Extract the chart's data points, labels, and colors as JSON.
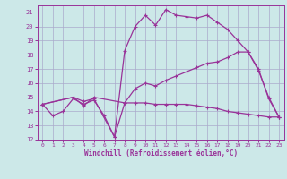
{
  "xlabel": "Windchill (Refroidissement éolien,°C)",
  "bg_color": "#cce8e8",
  "grid_color": "#aaaacc",
  "line_color": "#993399",
  "xlim": [
    -0.5,
    23.5
  ],
  "ylim": [
    12,
    21.5
  ],
  "xticks": [
    0,
    1,
    2,
    3,
    4,
    5,
    6,
    7,
    8,
    9,
    10,
    11,
    12,
    13,
    14,
    15,
    16,
    17,
    18,
    19,
    20,
    21,
    22,
    23
  ],
  "yticks": [
    12,
    13,
    14,
    15,
    16,
    17,
    18,
    19,
    20,
    21
  ],
  "line1_x": [
    0,
    1,
    2,
    3,
    4,
    5,
    6,
    7,
    8,
    9,
    10,
    11,
    12,
    13,
    14,
    15,
    16,
    17,
    18,
    19,
    20,
    21,
    22,
    23
  ],
  "line1_y": [
    14.5,
    13.7,
    14.0,
    14.9,
    14.5,
    14.8,
    13.7,
    12.2,
    14.6,
    14.6,
    14.6,
    14.5,
    14.5,
    14.5,
    14.5,
    14.4,
    14.3,
    14.2,
    14.0,
    13.9,
    13.8,
    13.7,
    13.6,
    13.6
  ],
  "line2_x": [
    0,
    3,
    4,
    5,
    7,
    8,
    9,
    10,
    11,
    12,
    13,
    14,
    15,
    16,
    17,
    18,
    19,
    20,
    21,
    22,
    23
  ],
  "line2_y": [
    14.5,
    15.0,
    14.7,
    14.9,
    12.2,
    18.3,
    20.0,
    20.8,
    20.1,
    21.2,
    20.8,
    20.7,
    20.6,
    20.8,
    20.3,
    19.8,
    19.0,
    18.2,
    17.0,
    14.9,
    13.6
  ],
  "line3_x": [
    0,
    3,
    4,
    5,
    8,
    9,
    10,
    11,
    12,
    13,
    14,
    15,
    16,
    17,
    18,
    19,
    20,
    21,
    22,
    23
  ],
  "line3_y": [
    14.5,
    15.0,
    14.4,
    15.0,
    14.6,
    15.6,
    16.0,
    15.8,
    16.2,
    16.5,
    16.8,
    17.1,
    17.4,
    17.5,
    17.8,
    18.2,
    18.2,
    16.9,
    15.0,
    13.6
  ]
}
